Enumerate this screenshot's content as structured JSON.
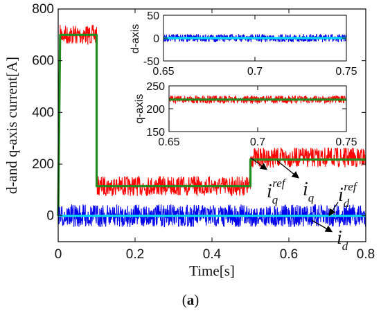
{
  "chart_data": [
    {
      "type": "line",
      "xlabel": "Time[s]",
      "ylabel": "d-and q-axis current[A]",
      "xlim": [
        0,
        0.8
      ],
      "ylim": [
        -100,
        800
      ],
      "xticks": [
        "0",
        "0.2",
        "0.4",
        "0.6",
        "0.8"
      ],
      "yticks": [
        "0",
        "200",
        "400",
        "600",
        "800"
      ],
      "grid": false,
      "series": [
        {
          "id": "iq",
          "color": "#ff0000",
          "noise": 14,
          "x": [
            0,
            0.005,
            0.1,
            0.1,
            0.5,
            0.5,
            0.8
          ],
          "y": [
            0,
            700,
            700,
            115,
            115,
            225,
            225
          ]
        },
        {
          "id": "iq_ref",
          "color": "#1e8c1e",
          "noise": 0,
          "x": [
            0,
            0.005,
            0.1,
            0.1,
            0.5,
            0.5,
            0.8
          ],
          "y": [
            0,
            700,
            700,
            115,
            115,
            218,
            218
          ]
        },
        {
          "id": "id",
          "color": "#0000ee",
          "noise": 16,
          "x": [
            0,
            0.8
          ],
          "y": [
            0,
            0
          ]
        },
        {
          "id": "id_ref",
          "color": "#00d8ff",
          "noise": 0,
          "x": [
            0,
            0.8
          ],
          "y": [
            0,
            0
          ]
        }
      ],
      "annotations": {
        "iq_ref": {
          "base": "i",
          "sub": "q",
          "sup": "ref"
        },
        "iq": {
          "base": "i",
          "sub": "q"
        },
        "id_ref": {
          "base": "i",
          "sub": "d",
          "sup": "ref"
        },
        "id": {
          "base": "i",
          "sub": "d"
        }
      }
    },
    {
      "type": "line",
      "ylabel": "d-axis",
      "xlim": [
        0.65,
        0.75
      ],
      "ylim": [
        -50,
        50
      ],
      "xticks": [
        "0.65",
        "0.7",
        "0.75"
      ],
      "yticks": [
        "-50",
        "0",
        "50"
      ],
      "series": [
        {
          "id": "id",
          "color": "#0000ee",
          "noise": 28,
          "x": [
            0.65,
            0.75
          ],
          "y": [
            0,
            0
          ]
        },
        {
          "id": "id_ref",
          "color": "#00d8ff",
          "noise": 0,
          "x": [
            0.65,
            0.75
          ],
          "y": [
            0,
            0
          ]
        }
      ]
    },
    {
      "type": "line",
      "ylabel": "q-axis",
      "xlim": [
        0.65,
        0.75
      ],
      "ylim": [
        150,
        250
      ],
      "xticks": [
        "0.65",
        "0.7",
        "0.75"
      ],
      "yticks": [
        "150",
        "200",
        "250"
      ],
      "series": [
        {
          "id": "iq",
          "color": "#ff0000",
          "noise": 28,
          "x": [
            0.65,
            0.75
          ],
          "y": [
            220,
            220
          ]
        },
        {
          "id": "iq_ref",
          "color": "#1e8c1e",
          "noise": 0,
          "x": [
            0.65,
            0.75
          ],
          "y": [
            220,
            220
          ]
        }
      ]
    }
  ],
  "caption": "(a)"
}
